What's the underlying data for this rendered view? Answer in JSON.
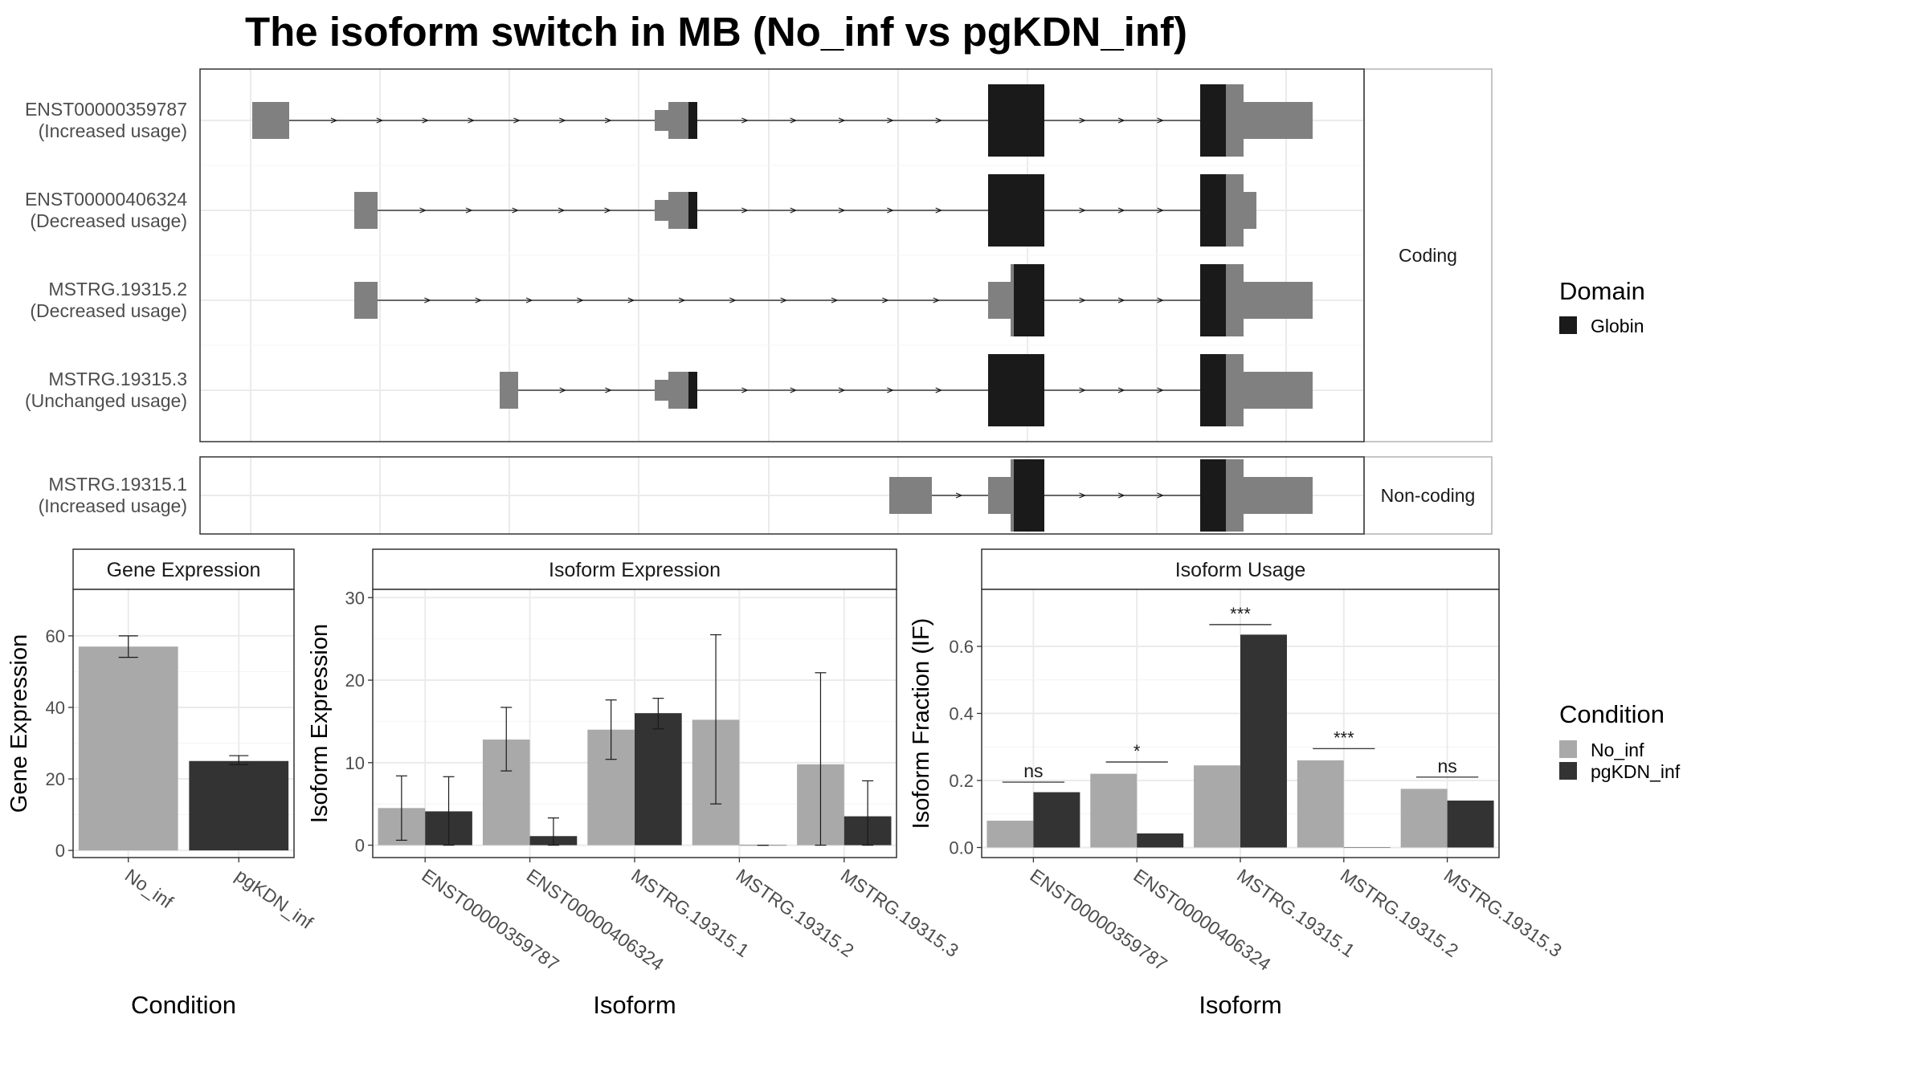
{
  "title": "The isoform switch in MB (No_inf vs pgKDN_inf)",
  "colors": {
    "utr": "#808080",
    "domain": "#1a1a1a",
    "no_inf": "#a9a9a9",
    "pgkdn_inf": "#333333",
    "grid": "#ebebeb",
    "panel_border": "#333333",
    "strip_border": "#b3b3b3"
  },
  "structure": {
    "facets": [
      "Coding",
      "Non-coding"
    ],
    "isoforms": [
      {
        "id": "ENST00000359787",
        "usage": "(Increased usage)",
        "facet": "Coding"
      },
      {
        "id": "ENST00000406324",
        "usage": "(Decreased usage)",
        "facet": "Coding"
      },
      {
        "id": "MSTRG.19315.2",
        "usage": "(Decreased usage)",
        "facet": "Coding"
      },
      {
        "id": "MSTRG.19315.3",
        "usage": "(Unchanged usage)",
        "facet": "Coding"
      },
      {
        "id": "MSTRG.19315.1",
        "usage": "(Increased usage)",
        "facet": "Non-coding"
      }
    ]
  },
  "legends": {
    "domain": {
      "title": "Domain",
      "items": [
        {
          "label": "Globin",
          "color": "#1a1a1a"
        }
      ]
    },
    "condition": {
      "title": "Condition",
      "items": [
        {
          "label": "No_inf",
          "color": "#a9a9a9"
        },
        {
          "label": "pgKDN_inf",
          "color": "#333333"
        }
      ]
    }
  },
  "chart_data": [
    {
      "type": "bar",
      "strip": "Gene Expression",
      "xlabel": "Condition",
      "ylabel": "Gene Expression",
      "categories": [
        "No_inf",
        "pgKDN_inf"
      ],
      "values": [
        57,
        25
      ],
      "error_low": [
        54,
        24
      ],
      "error_high": [
        60,
        26.5
      ],
      "ylim": [
        -2,
        73
      ],
      "yticks": [
        0,
        20,
        40,
        60
      ]
    },
    {
      "type": "bar",
      "strip": "Isoform Expression",
      "xlabel": "Isoform",
      "ylabel": "Isoform Expression",
      "categories": [
        "ENST00000359787",
        "ENST00000406324",
        "MSTRG.19315.1",
        "MSTRG.19315.2",
        "MSTRG.19315.3"
      ],
      "series": [
        {
          "name": "No_inf",
          "values": [
            4.5,
            12.8,
            14,
            15.2,
            9.8
          ],
          "error_low": [
            0.6,
            9,
            10.4,
            5,
            0
          ],
          "error_high": [
            8.4,
            16.7,
            17.6,
            25.5,
            20.9
          ]
        },
        {
          "name": "pgKDN_inf",
          "values": [
            4.1,
            1.1,
            16,
            0,
            3.5
          ],
          "error_low": [
            0,
            0,
            14.1,
            0,
            0
          ],
          "error_high": [
            8.3,
            3.3,
            17.8,
            0,
            7.8
          ]
        }
      ],
      "ylim": [
        -1.5,
        31
      ],
      "yticks": [
        0,
        10,
        20,
        30
      ]
    },
    {
      "type": "bar",
      "strip": "Isoform Usage",
      "xlabel": "Isoform",
      "ylabel": "Isoform Fraction (IF)",
      "categories": [
        "ENST00000359787",
        "ENST00000406324",
        "MSTRG.19315.1",
        "MSTRG.19315.2",
        "MSTRG.19315.3"
      ],
      "series": [
        {
          "name": "No_inf",
          "values": [
            0.08,
            0.22,
            0.245,
            0.26,
            0.175
          ]
        },
        {
          "name": "pgKDN_inf",
          "values": [
            0.165,
            0.042,
            0.635,
            0,
            0.14
          ]
        }
      ],
      "significance": [
        "ns",
        "*",
        "***",
        "***",
        "ns"
      ],
      "significance_y": [
        0.195,
        0.255,
        0.665,
        0.295,
        0.21
      ],
      "ylim": [
        -0.03,
        0.77
      ],
      "yticks": [
        0.0,
        0.2,
        0.4,
        0.6
      ]
    }
  ]
}
